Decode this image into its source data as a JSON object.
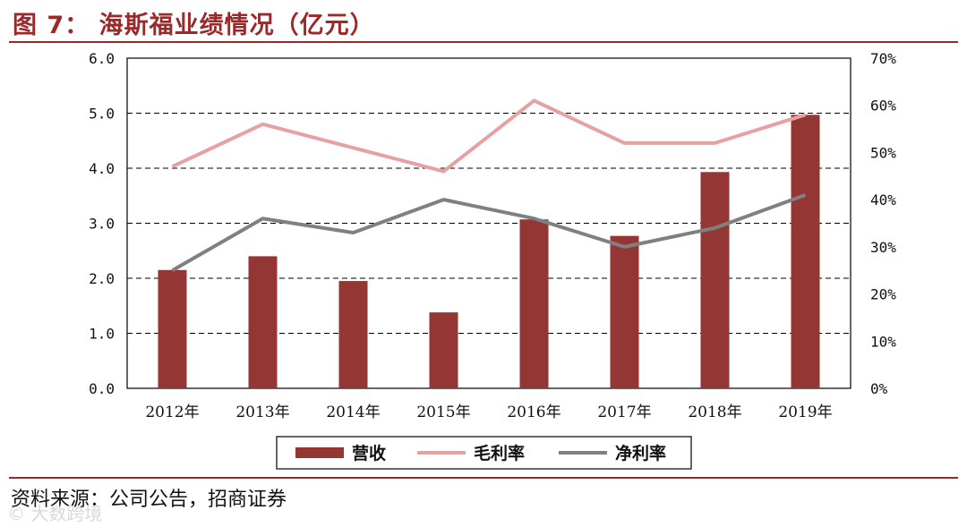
{
  "header": {
    "title": "图 7：  海斯福业绩情况（亿元）"
  },
  "footer": {
    "source": "资料来源：公司公告，招商证券",
    "watermark": "© 大数跨境"
  },
  "colors": {
    "bar": "#943634",
    "gross": "#e6a1a0",
    "net": "#808080",
    "accent": "#9a2a2a"
  },
  "chart_data": {
    "type": "bar",
    "categories": [
      "2012年",
      "2013年",
      "2014年",
      "2015年",
      "2016年",
      "2017年",
      "2018年",
      "2019年"
    ],
    "series": [
      {
        "name": "营收",
        "type": "bar",
        "axis": "left",
        "values": [
          2.15,
          2.4,
          1.95,
          1.38,
          3.07,
          2.77,
          3.93,
          4.97
        ]
      },
      {
        "name": "毛利率",
        "type": "line",
        "axis": "right",
        "values": [
          47,
          56,
          51,
          46,
          61,
          52,
          52,
          58
        ]
      },
      {
        "name": "净利率",
        "type": "line",
        "axis": "right",
        "values": [
          25,
          36,
          33,
          40,
          36,
          30,
          34,
          41
        ]
      }
    ],
    "ylim_left": [
      0,
      6
    ],
    "yticks_left": [
      "0.0",
      "1.0",
      "2.0",
      "3.0",
      "4.0",
      "5.0",
      "6.0"
    ],
    "ylim_right": [
      0,
      70
    ],
    "yticks_right": [
      "0%",
      "10%",
      "20%",
      "30%",
      "40%",
      "50%",
      "60%",
      "70%"
    ],
    "grid": "horizontal-dashed",
    "legend": "bottom-center"
  }
}
